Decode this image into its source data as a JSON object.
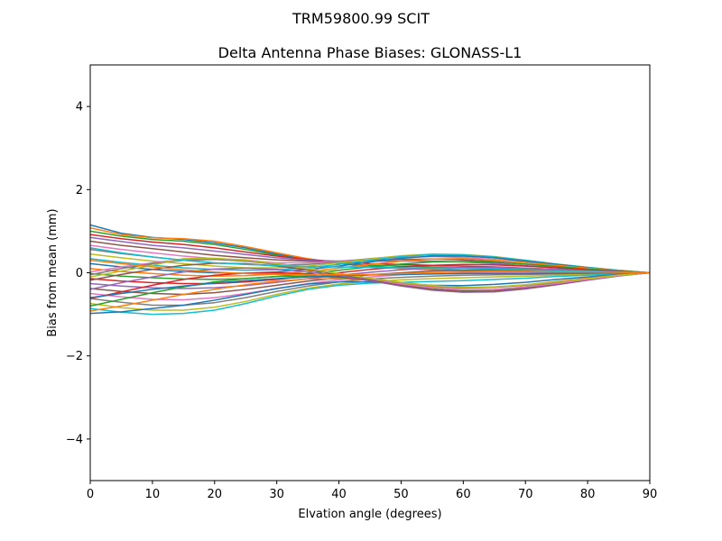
{
  "figure": {
    "suptitle": "TRM59800.99      SCIT"
  },
  "chart_data": {
    "type": "line",
    "title": "Delta Antenna Phase Biases: GLONASS-L1",
    "xlabel": "Elvation angle (degrees)",
    "ylabel": "Bias from mean (mm)",
    "xlim": [
      0,
      90
    ],
    "ylim": [
      -5,
      5
    ],
    "xticks": [
      0,
      10,
      20,
      30,
      40,
      50,
      60,
      70,
      80,
      90
    ],
    "xtick_labels": [
      "0",
      "10",
      "20",
      "30",
      "40",
      "50",
      "60",
      "70",
      "80",
      "90"
    ],
    "yticks": [
      -4,
      -2,
      0,
      2,
      4
    ],
    "ytick_labels": [
      "−4",
      "−2",
      "0",
      "2",
      "4"
    ],
    "grid": false,
    "legend": "none",
    "x": [
      0,
      5,
      10,
      15,
      20,
      25,
      30,
      35,
      40,
      45,
      50,
      55,
      60,
      65,
      70,
      75,
      80,
      85,
      90
    ],
    "colors": [
      "#1f77b4",
      "#ff7f0e",
      "#2ca02c",
      "#d62728",
      "#9467bd",
      "#8c564b",
      "#e377c2",
      "#7f7f7f",
      "#bcbd22",
      "#17becf"
    ],
    "series": [
      {
        "values": [
          1.15,
          0.95,
          0.85,
          0.8,
          0.72,
          0.6,
          0.45,
          0.32,
          0.22,
          0.15,
          0.1,
          0.08,
          0.06,
          0.05,
          0.04,
          0.03,
          0.02,
          0.01,
          0.0
        ]
      },
      {
        "values": [
          1.08,
          0.92,
          0.84,
          0.82,
          0.76,
          0.63,
          0.48,
          0.34,
          0.24,
          0.16,
          0.1,
          0.07,
          0.05,
          0.04,
          0.03,
          0.02,
          0.02,
          0.01,
          0.0
        ]
      },
      {
        "values": [
          1.0,
          0.88,
          0.8,
          0.76,
          0.68,
          0.56,
          0.42,
          0.3,
          0.22,
          0.18,
          0.16,
          0.14,
          0.12,
          0.1,
          0.08,
          0.06,
          0.04,
          0.02,
          0.0
        ]
      },
      {
        "values": [
          0.92,
          0.82,
          0.74,
          0.68,
          0.6,
          0.5,
          0.4,
          0.32,
          0.26,
          0.22,
          0.2,
          0.18,
          0.16,
          0.14,
          0.11,
          0.08,
          0.05,
          0.02,
          0.0
        ]
      },
      {
        "values": [
          0.85,
          0.75,
          0.66,
          0.6,
          0.52,
          0.44,
          0.36,
          0.3,
          0.28,
          0.28,
          0.28,
          0.28,
          0.26,
          0.22,
          0.17,
          0.12,
          0.07,
          0.03,
          0.0
        ]
      },
      {
        "values": [
          0.76,
          0.66,
          0.58,
          0.5,
          0.42,
          0.36,
          0.31,
          0.28,
          0.28,
          0.3,
          0.32,
          0.33,
          0.31,
          0.27,
          0.21,
          0.15,
          0.09,
          0.04,
          0.0
        ]
      },
      {
        "values": [
          0.66,
          0.56,
          0.48,
          0.4,
          0.34,
          0.28,
          0.24,
          0.24,
          0.28,
          0.33,
          0.37,
          0.39,
          0.37,
          0.32,
          0.25,
          0.18,
          0.11,
          0.05,
          0.0
        ]
      },
      {
        "values": [
          0.56,
          0.46,
          0.38,
          0.3,
          0.24,
          0.2,
          0.18,
          0.2,
          0.26,
          0.34,
          0.4,
          0.43,
          0.41,
          0.36,
          0.28,
          0.2,
          0.12,
          0.05,
          0.0
        ]
      },
      {
        "values": [
          0.45,
          0.36,
          0.28,
          0.22,
          0.16,
          0.12,
          0.12,
          0.16,
          0.24,
          0.33,
          0.41,
          0.45,
          0.44,
          0.39,
          0.3,
          0.21,
          0.13,
          0.06,
          0.0
        ]
      },
      {
        "values": [
          0.34,
          0.25,
          0.18,
          0.12,
          0.08,
          0.06,
          0.07,
          0.12,
          0.2,
          0.3,
          0.39,
          0.44,
          0.43,
          0.38,
          0.3,
          0.21,
          0.13,
          0.06,
          0.0
        ]
      },
      {
        "values": [
          0.22,
          0.14,
          0.08,
          0.03,
          0.0,
          -0.01,
          0.02,
          0.08,
          0.16,
          0.26,
          0.35,
          0.4,
          0.4,
          0.36,
          0.28,
          0.2,
          0.12,
          0.05,
          0.0
        ]
      },
      {
        "values": [
          0.1,
          0.03,
          -0.02,
          -0.06,
          -0.08,
          -0.07,
          -0.03,
          0.03,
          0.11,
          0.2,
          0.28,
          0.33,
          0.34,
          0.31,
          0.25,
          0.18,
          0.11,
          0.05,
          0.0
        ]
      },
      {
        "values": [
          -0.02,
          -0.08,
          -0.12,
          -0.15,
          -0.16,
          -0.14,
          -0.09,
          -0.02,
          0.06,
          0.14,
          0.21,
          0.26,
          0.27,
          0.25,
          0.21,
          0.15,
          0.09,
          0.04,
          0.0
        ]
      },
      {
        "values": [
          -0.14,
          -0.2,
          -0.24,
          -0.26,
          -0.26,
          -0.22,
          -0.16,
          -0.08,
          0.0,
          0.08,
          0.14,
          0.18,
          0.2,
          0.19,
          0.16,
          0.12,
          0.07,
          0.03,
          0.0
        ]
      },
      {
        "values": [
          -0.26,
          -0.32,
          -0.36,
          -0.38,
          -0.36,
          -0.31,
          -0.23,
          -0.14,
          -0.06,
          0.01,
          0.07,
          0.11,
          0.13,
          0.13,
          0.11,
          0.08,
          0.05,
          0.02,
          0.0
        ]
      },
      {
        "values": [
          -0.38,
          -0.45,
          -0.5,
          -0.52,
          -0.48,
          -0.4,
          -0.3,
          -0.2,
          -0.12,
          -0.05,
          0.0,
          0.04,
          0.06,
          0.07,
          0.06,
          0.05,
          0.03,
          0.01,
          0.0
        ]
      },
      {
        "values": [
          -0.5,
          -0.58,
          -0.64,
          -0.65,
          -0.6,
          -0.5,
          -0.38,
          -0.26,
          -0.17,
          -0.1,
          -0.05,
          -0.02,
          0.0,
          0.01,
          0.01,
          0.01,
          0.01,
          0.0,
          0.0
        ]
      },
      {
        "values": [
          -0.62,
          -0.71,
          -0.78,
          -0.78,
          -0.72,
          -0.6,
          -0.45,
          -0.32,
          -0.22,
          -0.15,
          -0.11,
          -0.08,
          -0.06,
          -0.05,
          -0.04,
          -0.03,
          -0.02,
          -0.01,
          0.0
        ]
      },
      {
        "values": [
          -0.74,
          -0.84,
          -0.9,
          -0.9,
          -0.83,
          -0.69,
          -0.52,
          -0.37,
          -0.27,
          -0.21,
          -0.17,
          -0.14,
          -0.12,
          -0.1,
          -0.08,
          -0.06,
          -0.04,
          -0.02,
          0.0
        ]
      },
      {
        "values": [
          -0.86,
          -0.95,
          -1.0,
          -0.98,
          -0.9,
          -0.74,
          -0.56,
          -0.4,
          -0.3,
          -0.25,
          -0.23,
          -0.21,
          -0.19,
          -0.16,
          -0.13,
          -0.09,
          -0.06,
          -0.03,
          0.0
        ]
      },
      {
        "values": [
          -0.98,
          -0.94,
          -0.86,
          -0.78,
          -0.66,
          -0.52,
          -0.38,
          -0.27,
          -0.22,
          -0.22,
          -0.26,
          -0.3,
          -0.31,
          -0.28,
          -0.23,
          -0.16,
          -0.1,
          -0.04,
          0.0
        ]
      },
      {
        "values": [
          -0.92,
          -0.8,
          -0.66,
          -0.52,
          -0.4,
          -0.29,
          -0.2,
          -0.15,
          -0.14,
          -0.18,
          -0.26,
          -0.33,
          -0.37,
          -0.35,
          -0.29,
          -0.21,
          -0.13,
          -0.05,
          0.0
        ]
      },
      {
        "values": [
          -0.8,
          -0.64,
          -0.48,
          -0.34,
          -0.22,
          -0.14,
          -0.09,
          -0.08,
          -0.11,
          -0.18,
          -0.28,
          -0.37,
          -0.42,
          -0.41,
          -0.34,
          -0.24,
          -0.15,
          -0.06,
          0.0
        ]
      },
      {
        "values": [
          -0.62,
          -0.46,
          -0.3,
          -0.16,
          -0.06,
          -0.01,
          0.0,
          -0.03,
          -0.09,
          -0.19,
          -0.31,
          -0.41,
          -0.46,
          -0.45,
          -0.38,
          -0.28,
          -0.17,
          -0.07,
          0.0
        ]
      },
      {
        "values": [
          -0.4,
          -0.24,
          -0.1,
          0.02,
          0.09,
          0.11,
          0.08,
          0.02,
          -0.07,
          -0.19,
          -0.32,
          -0.42,
          -0.47,
          -0.46,
          -0.39,
          -0.29,
          -0.18,
          -0.08,
          0.0
        ]
      },
      {
        "values": [
          -0.18,
          -0.04,
          0.08,
          0.18,
          0.23,
          0.22,
          0.16,
          0.07,
          -0.04,
          -0.17,
          -0.3,
          -0.4,
          -0.45,
          -0.44,
          -0.37,
          -0.28,
          -0.17,
          -0.07,
          0.0
        ]
      },
      {
        "values": [
          0.02,
          0.14,
          0.24,
          0.32,
          0.34,
          0.31,
          0.23,
          0.11,
          -0.02,
          -0.15,
          -0.27,
          -0.36,
          -0.41,
          -0.4,
          -0.34,
          -0.26,
          -0.16,
          -0.07,
          0.0
        ]
      },
      {
        "values": [
          -0.05,
          0.1,
          0.22,
          0.3,
          0.32,
          0.28,
          0.2,
          0.09,
          -0.03,
          -0.14,
          -0.24,
          -0.32,
          -0.36,
          -0.35,
          -0.3,
          -0.22,
          -0.14,
          -0.06,
          0.0
        ]
      },
      {
        "values": [
          -0.1,
          0.04,
          0.18,
          0.34,
          0.35,
          0.3,
          0.22,
          0.1,
          -0.02,
          -0.13,
          -0.23,
          -0.31,
          -0.35,
          -0.34,
          -0.29,
          -0.22,
          -0.14,
          -0.06,
          0.0
        ]
      },
      {
        "values": [
          0.6,
          0.48,
          0.38,
          0.3,
          0.24,
          0.2,
          0.17,
          0.15,
          0.14,
          0.13,
          0.12,
          0.11,
          0.1,
          0.09,
          0.07,
          0.05,
          0.03,
          0.02,
          0.0
        ]
      },
      {
        "values": [
          -0.6,
          -0.5,
          -0.4,
          -0.32,
          -0.25,
          -0.19,
          -0.14,
          -0.1,
          -0.07,
          -0.05,
          -0.04,
          -0.03,
          -0.02,
          -0.02,
          -0.02,
          -0.01,
          -0.01,
          0.0,
          0.0
        ]
      },
      {
        "values": [
          0.3,
          0.22,
          0.14,
          0.07,
          0.02,
          -0.02,
          -0.04,
          -0.05,
          -0.05,
          -0.04,
          -0.02,
          0.0,
          0.02,
          0.03,
          0.03,
          0.02,
          0.02,
          0.01,
          0.0
        ]
      }
    ]
  }
}
